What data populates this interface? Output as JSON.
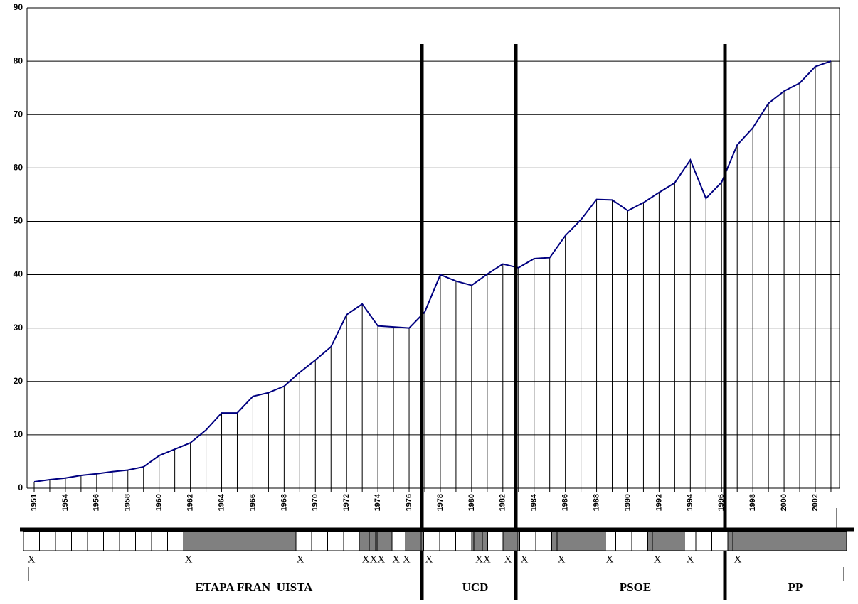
{
  "chart_data": {
    "type": "line",
    "categories": [
      "1951",
      null,
      "1954",
      null,
      "1956",
      null,
      "1958",
      null,
      "1960",
      null,
      "1962",
      null,
      "1964",
      null,
      "1966",
      null,
      "1968",
      null,
      "1970",
      null,
      "1972",
      null,
      "1974",
      null,
      "1976",
      null,
      "1978",
      null,
      "1980",
      null,
      "1982",
      null,
      "1984",
      null,
      "1986",
      null,
      "1988",
      null,
      "1990",
      null,
      "1992",
      null,
      "1994",
      null,
      "1996",
      null,
      "1998",
      null,
      "2000",
      null,
      "2002",
      null
    ],
    "series": [
      {
        "color": "#000080",
        "values": [
          1.2,
          1.6,
          1.9,
          2.4,
          2.7,
          3.1,
          3.4,
          4.0,
          6.1,
          7.3,
          8.5,
          10.9,
          14.1,
          14.1,
          17.2,
          17.9,
          19.1,
          21.7,
          24.0,
          26.5,
          32.5,
          34.5,
          30.4,
          30.2,
          30.0,
          33.0,
          40.0,
          38.8,
          38.0,
          40.1,
          42.0,
          41.3,
          43.0,
          43.2,
          47.3,
          50.3,
          54.1,
          54.0,
          52.0,
          53.5,
          55.4,
          57.2,
          61.5,
          54.3,
          57.3,
          64.3,
          67.5,
          72.1,
          74.4,
          75.9,
          79.0,
          80.0
        ]
      }
    ],
    "ylim": [
      0,
      90
    ],
    "yticks": [
      0,
      10,
      20,
      30,
      40,
      50,
      60,
      70,
      80,
      90
    ],
    "grid": true,
    "annotations": [
      "X",
      "X",
      "X",
      "XXX",
      "X X",
      "X",
      "XX",
      "X",
      "X",
      "X",
      "X",
      "X",
      "X",
      "X"
    ],
    "periods": [
      "ETAPA FRAN  UISTA",
      "UCD",
      "PSOE",
      "PP"
    ]
  }
}
